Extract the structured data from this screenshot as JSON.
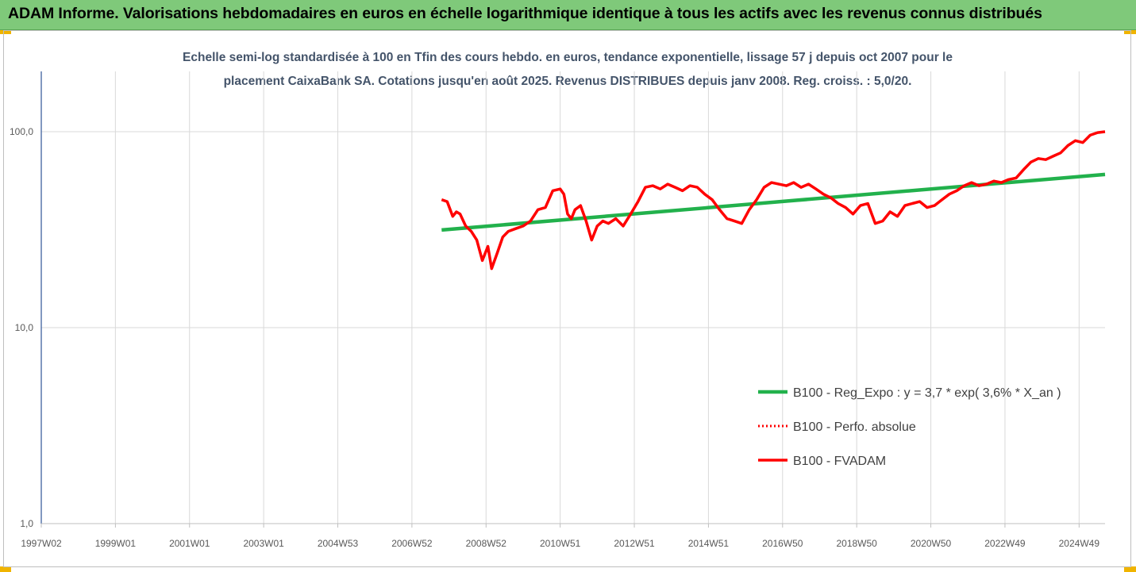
{
  "header": {
    "title": "ADAM Informe. Valorisations hebdomadaires en euros en échelle logarithmique identique à tous les actifs avec les revenus connus distribués"
  },
  "colors": {
    "header_bg": "#7fc97a",
    "corner": "#f0b400",
    "trend": "#22b14c",
    "perf": "#ff0000",
    "fvadam": "#ff0000",
    "grid": "#d9d9d9"
  },
  "chart_data": {
    "type": "line",
    "title_line1": "Echelle semi-log standardisée à 100 en Tfin des cours hebdo. en euros, tendance exponentielle, lissage 57 j depuis oct 2007 pour le",
    "title_line2": "placement CaixaBank SA.  Cotations jusqu'en août 2025. Revenus DISTRIBUES depuis janv 2008. Reg. croiss. : 5,0/20.",
    "y_scale": "log",
    "ylim": [
      1,
      200
    ],
    "y_ticks": [
      {
        "value": 1,
        "label": "1,0"
      },
      {
        "value": 10,
        "label": "10,0"
      },
      {
        "value": 100,
        "label": "100,0"
      }
    ],
    "xlim": [
      1997.0,
      2025.7
    ],
    "x_ticks": [
      {
        "value": 1997.0,
        "label": "1997W02"
      },
      {
        "value": 1999.0,
        "label": "1999W01"
      },
      {
        "value": 2001.0,
        "label": "2001W01"
      },
      {
        "value": 2003.0,
        "label": "2003W01"
      },
      {
        "value": 2005.0,
        "label": "2004W53"
      },
      {
        "value": 2007.0,
        "label": "2006W52"
      },
      {
        "value": 2009.0,
        "label": "2008W52"
      },
      {
        "value": 2011.0,
        "label": "2010W51"
      },
      {
        "value": 2013.0,
        "label": "2012W51"
      },
      {
        "value": 2015.0,
        "label": "2014W51"
      },
      {
        "value": 2017.0,
        "label": "2016W50"
      },
      {
        "value": 2019.0,
        "label": "2018W50"
      },
      {
        "value": 2021.0,
        "label": "2020W50"
      },
      {
        "value": 2023.0,
        "label": "2022W49"
      },
      {
        "value": 2025.0,
        "label": "2024W49"
      }
    ],
    "grid": "vertical-and-horizontal",
    "legend_position": "bottom-right",
    "series": [
      {
        "name": "B100 - Reg_Expo : y = 3,7 * exp( 3,6% *  X_an )",
        "style": "solid-green",
        "x": [
          2007.8,
          2025.7
        ],
        "y": [
          31.5,
          60.5
        ]
      },
      {
        "name": "B100 - Perfo. absolue",
        "style": "dotted-red",
        "x": [],
        "y": []
      },
      {
        "name": "B100 - FVADAM",
        "style": "solid-red",
        "x": [
          2007.8,
          2007.95,
          2008.1,
          2008.2,
          2008.3,
          2008.45,
          2008.6,
          2008.75,
          2008.9,
          2009.05,
          2009.15,
          2009.3,
          2009.45,
          2009.6,
          2009.8,
          2010.0,
          2010.2,
          2010.4,
          2010.6,
          2010.8,
          2011.0,
          2011.1,
          2011.2,
          2011.3,
          2011.4,
          2011.55,
          2011.7,
          2011.85,
          2012.0,
          2012.15,
          2012.3,
          2012.5,
          2012.7,
          2012.9,
          2013.1,
          2013.3,
          2013.5,
          2013.7,
          2013.9,
          2014.1,
          2014.3,
          2014.5,
          2014.7,
          2014.9,
          2015.1,
          2015.3,
          2015.5,
          2015.7,
          2015.9,
          2016.1,
          2016.3,
          2016.5,
          2016.7,
          2016.9,
          2017.1,
          2017.3,
          2017.5,
          2017.7,
          2017.9,
          2018.1,
          2018.3,
          2018.5,
          2018.7,
          2018.9,
          2019.1,
          2019.3,
          2019.5,
          2019.7,
          2019.9,
          2020.1,
          2020.3,
          2020.5,
          2020.7,
          2020.9,
          2021.1,
          2021.3,
          2021.5,
          2021.7,
          2021.9,
          2022.1,
          2022.3,
          2022.5,
          2022.7,
          2022.9,
          2023.1,
          2023.3,
          2023.5,
          2023.7,
          2023.9,
          2024.1,
          2024.3,
          2024.5,
          2024.7,
          2024.9,
          2025.1,
          2025.3,
          2025.5,
          2025.7
        ],
        "y": [
          45,
          44,
          37,
          39,
          38,
          33,
          31,
          28,
          22,
          26,
          20,
          24,
          29,
          31,
          32,
          33,
          35,
          40,
          41,
          50,
          51,
          48,
          38,
          36,
          40,
          42,
          35,
          28,
          33,
          35,
          34,
          36,
          33,
          38,
          44,
          52,
          53,
          51,
          54,
          52,
          50,
          53,
          52,
          48,
          45,
          40,
          36,
          35,
          34,
          40,
          45,
          52,
          55,
          54,
          53,
          55,
          52,
          54,
          51,
          48,
          46,
          43,
          41,
          38,
          42,
          43,
          34,
          35,
          39,
          37,
          42,
          43,
          44,
          41,
          42,
          45,
          48,
          50,
          53,
          55,
          53,
          54,
          56,
          55,
          57,
          58,
          64,
          70,
          73,
          72,
          75,
          78,
          85,
          90,
          88,
          96,
          99,
          100
        ]
      }
    ]
  }
}
